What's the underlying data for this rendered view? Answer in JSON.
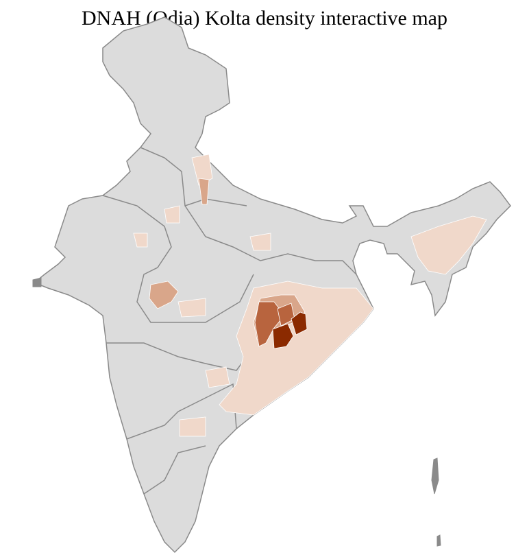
{
  "title": "DNAH (Odia) Kolta density interactive map",
  "colors": {
    "no_data": "#dcdcdc",
    "border_district": "#ffffff",
    "border_state": "#8a8a8a",
    "density_low": "#f0d8ca",
    "density_mid": "#d9a68a",
    "density_high": "#b8643e",
    "density_max": "#8b2a00"
  }
}
